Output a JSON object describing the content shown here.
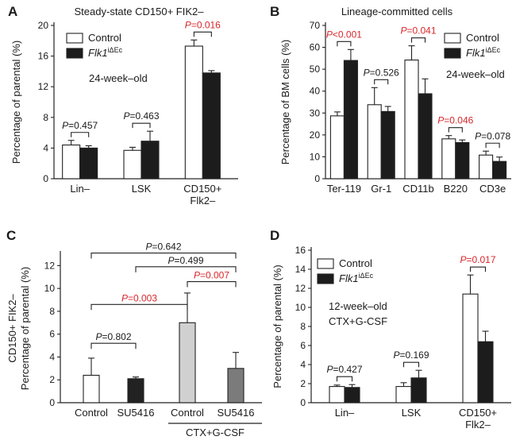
{
  "figure": {
    "letters": [
      "A",
      "B",
      "C",
      "D"
    ]
  },
  "chart_data": [
    {
      "type": "bar",
      "panel": "A",
      "title": "Steady-state CD150+ FIK2–",
      "ylabel": "Percentage of parental (%)",
      "ylim": [
        0,
        20
      ],
      "yticks": [
        0,
        4,
        8,
        12,
        16,
        20
      ],
      "categories": [
        [
          "Lin–"
        ],
        [
          "LSK"
        ],
        [
          "CD150+",
          "Flk2–"
        ]
      ],
      "series": [
        {
          "name": "Control",
          "values": [
            4.4,
            3.7,
            17.3
          ],
          "errors": [
            0.6,
            0.4,
            0.8
          ]
        },
        {
          "name": "Flk1",
          "sup": "iΔEc",
          "values": [
            4.0,
            4.9,
            13.8
          ],
          "errors": [
            0.3,
            1.3,
            0.3
          ]
        }
      ],
      "legend": {
        "items": [
          "Control",
          "Flk1"
        ],
        "sup": "iΔEc",
        "note": "24-week–old"
      },
      "pvalues": [
        {
          "text": "P=0.457",
          "cat": 0,
          "significant": false
        },
        {
          "text": "P=0.463",
          "cat": 1,
          "significant": false
        },
        {
          "text": "P=0.016",
          "cat": 2,
          "significant": true
        }
      ]
    },
    {
      "type": "bar",
      "panel": "B",
      "title": "Lineage-committed cells",
      "ylabel": "Percentage of BM cells (%)",
      "ylim": [
        0,
        70
      ],
      "yticks": [
        0,
        10,
        20,
        30,
        40,
        50,
        60,
        70
      ],
      "categories": [
        [
          "Ter-119"
        ],
        [
          "Gr-1"
        ],
        [
          "CD11b"
        ],
        [
          "B220"
        ],
        [
          "CD3e"
        ]
      ],
      "series": [
        {
          "name": "Control",
          "values": [
            28.7,
            33.8,
            54.2,
            18.2,
            10.8
          ],
          "errors": [
            1.8,
            7.8,
            6.5,
            1.5,
            1.8
          ]
        },
        {
          "name": "Flk1",
          "sup": "iΔEc",
          "values": [
            54.0,
            30.7,
            38.8,
            16.5,
            7.9
          ],
          "errors": [
            5.0,
            2.3,
            6.8,
            1.2,
            2.0
          ]
        }
      ],
      "legend": {
        "items": [
          "Control",
          "Flk1"
        ],
        "sup": "iΔEc",
        "note": "24-week–old"
      },
      "pvalues": [
        {
          "text": "P<0.001",
          "cat": 0,
          "significant": true
        },
        {
          "text": "P=0.526",
          "cat": 1,
          "significant": false
        },
        {
          "text": "P=0.041",
          "cat": 2,
          "significant": true
        },
        {
          "text": "P=0.046",
          "cat": 3,
          "significant": true
        },
        {
          "text": "P=0.078",
          "cat": 4,
          "significant": false
        }
      ]
    },
    {
      "type": "bar",
      "panel": "C",
      "ylabel": [
        "CD150+ FIK2–",
        "Percentage of parental (%)"
      ],
      "ylim": [
        0,
        13
      ],
      "yticks": [
        0,
        2,
        4,
        6,
        8,
        10,
        12
      ],
      "categories": [
        "Control",
        "SU5416",
        "Control",
        "SU5416"
      ],
      "group_label": "CTX+G-CSF",
      "values": [
        2.4,
        2.1,
        7.0,
        3.0
      ],
      "errors": [
        1.5,
        0.15,
        2.6,
        1.4
      ],
      "bar_colors": [
        "#ffffff",
        "#222222",
        "#d0d0d0",
        "#7b7b7b"
      ],
      "pvalues": [
        {
          "text": "P=0.642",
          "pair": [
            0,
            3
          ],
          "significant": false
        },
        {
          "text": "P=0.499",
          "pair": [
            1,
            3
          ],
          "significant": false
        },
        {
          "text": "P=0.007",
          "pair": [
            2,
            3
          ],
          "significant": true
        },
        {
          "text": "P=0.003",
          "pair": [
            0,
            2
          ],
          "significant": true
        },
        {
          "text": "P=0.802",
          "pair": [
            0,
            1
          ],
          "significant": false
        }
      ]
    },
    {
      "type": "bar",
      "panel": "D",
      "ylabel": "Percentage of parental (%)",
      "ylim": [
        0,
        16
      ],
      "yticks": [
        0,
        2,
        4,
        6,
        8,
        10,
        12,
        14,
        16
      ],
      "categories": [
        [
          "Lin–"
        ],
        [
          "LSK"
        ],
        [
          "CD150+",
          "Flk2–"
        ]
      ],
      "series": [
        {
          "name": "Control",
          "values": [
            1.7,
            1.7,
            11.4
          ],
          "errors": [
            0.15,
            0.4,
            2.0
          ]
        },
        {
          "name": "Flk1",
          "sup": "iΔEc",
          "values": [
            1.6,
            2.6,
            6.4
          ],
          "errors": [
            0.3,
            0.8,
            1.1
          ]
        }
      ],
      "legend": {
        "items": [
          "Control",
          "Flk1"
        ],
        "sup": "iΔEc",
        "note": "12-week–old",
        "note2": "CTX+G-CSF"
      },
      "pvalues": [
        {
          "text": "P=0.427",
          "cat": 0,
          "significant": false
        },
        {
          "text": "P=0.169",
          "cat": 1,
          "significant": false
        },
        {
          "text": "P=0.017",
          "cat": 2,
          "significant": true
        }
      ]
    }
  ]
}
